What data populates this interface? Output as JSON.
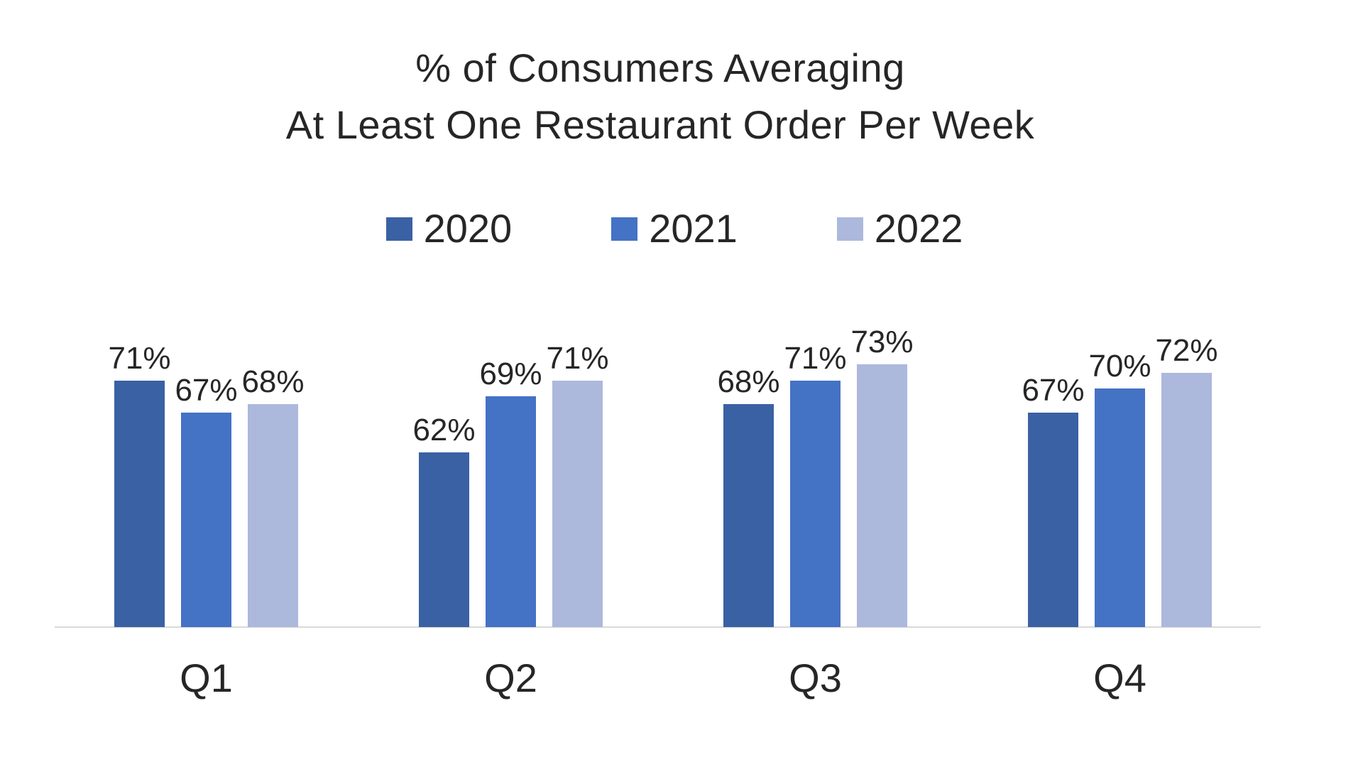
{
  "chart_data": {
    "type": "bar",
    "title_lines": [
      "% of Consumers Averaging",
      "At Least One Restaurant Order Per Week"
    ],
    "categories": [
      "Q1",
      "Q2",
      "Q3",
      "Q4"
    ],
    "series": [
      {
        "name": "2020",
        "color": "#3A61A3",
        "values": [
          71,
          62,
          68,
          67
        ]
      },
      {
        "name": "2021",
        "color": "#4472C4",
        "values": [
          67,
          69,
          71,
          70
        ]
      },
      {
        "name": "2022",
        "color": "#ACB8DC",
        "values": [
          68,
          71,
          73,
          72
        ]
      }
    ],
    "value_suffix": "%",
    "data_labels": true,
    "legend_position": "top",
    "xlabel": "",
    "ylabel": "",
    "y_axis_visible": false,
    "gridlines": false,
    "ylim": [
      40,
      78
    ],
    "baseline_color": "#D9D9D9",
    "text_color": "#262626",
    "background_color": "#FFFFFF"
  }
}
